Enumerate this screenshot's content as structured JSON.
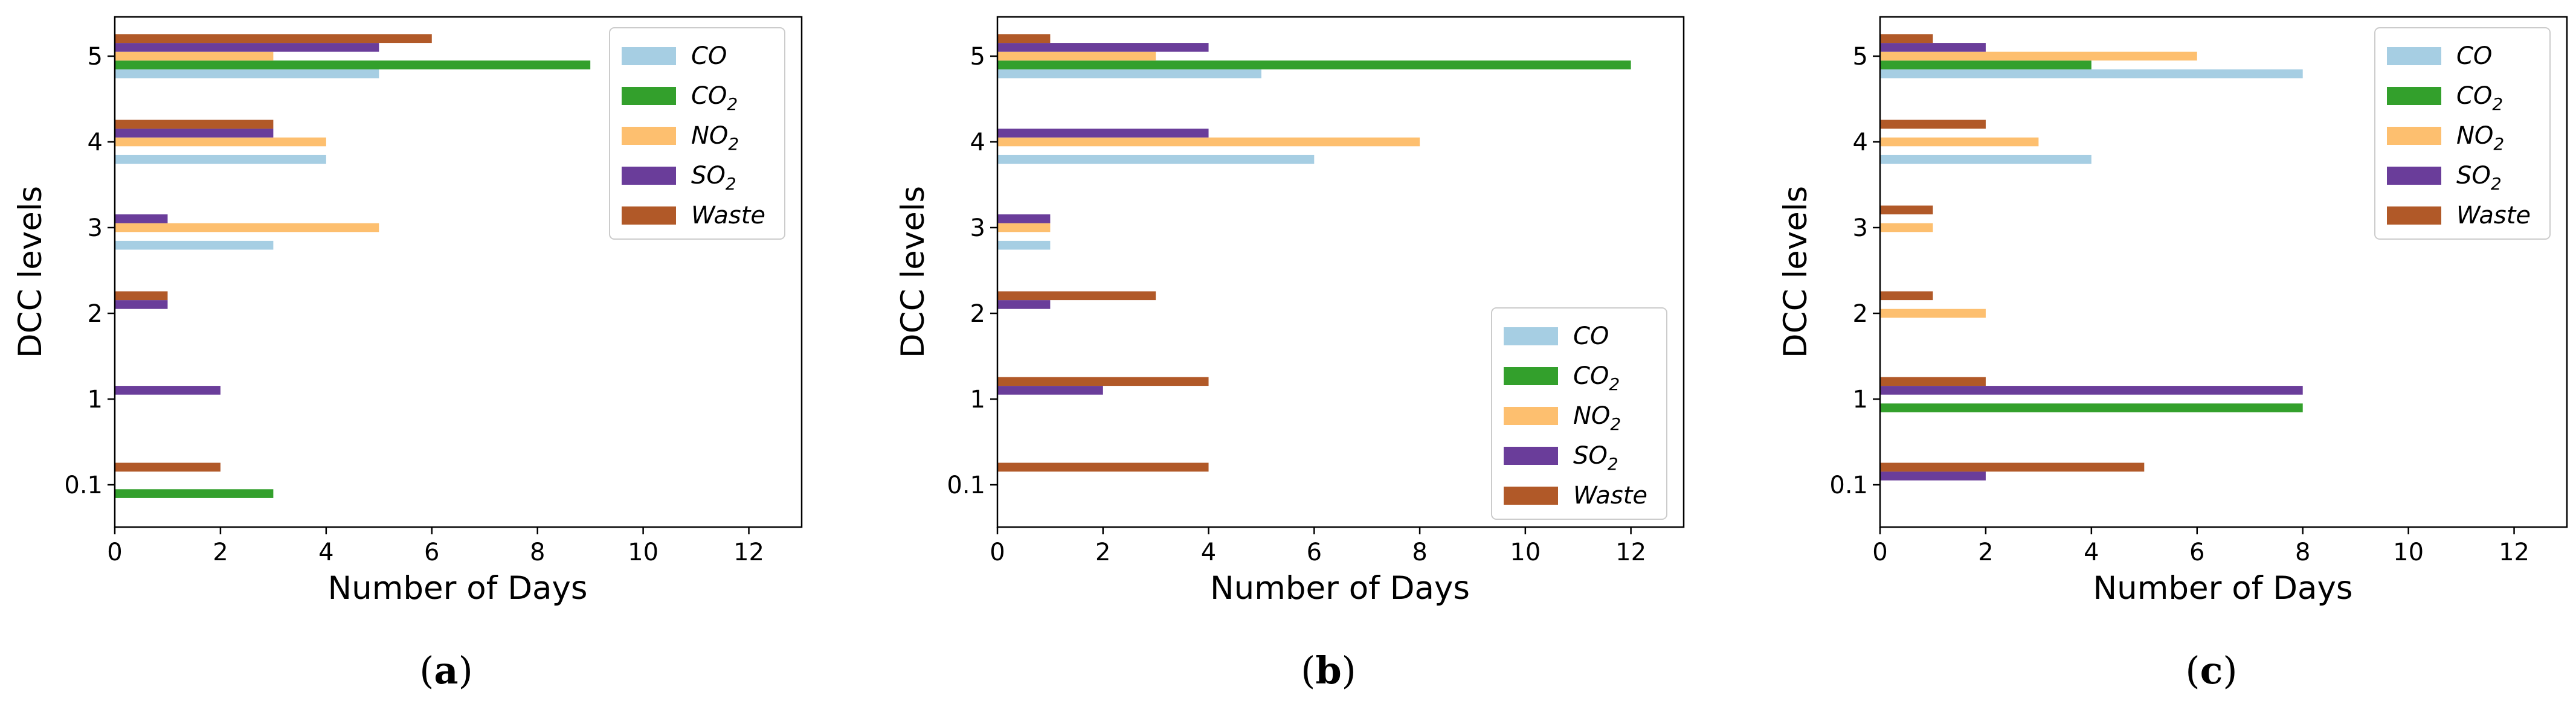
{
  "chart_data": [
    {
      "type": "bar",
      "orientation": "horizontal",
      "caption_letter": "a",
      "xlabel": "Number of Days",
      "ylabel": "DCC levels",
      "categories": [
        "0.1",
        "1",
        "2",
        "3",
        "4",
        "5"
      ],
      "xlim": [
        0,
        13
      ],
      "xticks": [
        "0",
        "2",
        "4",
        "6",
        "8",
        "10",
        "12"
      ],
      "legend_position": "top-right",
      "series": [
        {
          "name": "CO",
          "color": "#a6cee3",
          "values": [
            0,
            0,
            0,
            3,
            4,
            5
          ]
        },
        {
          "name": "CO2",
          "color": "#33a02c",
          "values": [
            3,
            0,
            0,
            0,
            0,
            9
          ]
        },
        {
          "name": "NO2",
          "color": "#fdbf6f",
          "values": [
            0,
            0,
            0,
            5,
            4,
            3
          ]
        },
        {
          "name": "SO2",
          "color": "#6a3d9a",
          "values": [
            0,
            2,
            1,
            1,
            3,
            5
          ]
        },
        {
          "name": "Waste",
          "color": "#b15928",
          "values": [
            2,
            0,
            1,
            0,
            3,
            6
          ]
        }
      ]
    },
    {
      "type": "bar",
      "orientation": "horizontal",
      "caption_letter": "b",
      "xlabel": "Number of Days",
      "ylabel": "DCC levels",
      "categories": [
        "0.1",
        "1",
        "2",
        "3",
        "4",
        "5"
      ],
      "xlim": [
        0,
        13
      ],
      "xticks": [
        "0",
        "2",
        "4",
        "6",
        "8",
        "10",
        "12"
      ],
      "legend_position": "bottom-right",
      "series": [
        {
          "name": "CO",
          "color": "#a6cee3",
          "values": [
            0,
            0,
            0,
            1,
            6,
            5
          ]
        },
        {
          "name": "CO2",
          "color": "#33a02c",
          "values": [
            0,
            0,
            0,
            0,
            0,
            12
          ]
        },
        {
          "name": "NO2",
          "color": "#fdbf6f",
          "values": [
            0,
            0,
            0,
            1,
            8,
            3
          ]
        },
        {
          "name": "SO2",
          "color": "#6a3d9a",
          "values": [
            0,
            2,
            1,
            1,
            4,
            4
          ]
        },
        {
          "name": "Waste",
          "color": "#b15928",
          "values": [
            4,
            4,
            3,
            0,
            0,
            1
          ]
        }
      ]
    },
    {
      "type": "bar",
      "orientation": "horizontal",
      "caption_letter": "c",
      "xlabel": "Number of Days",
      "ylabel": "DCC levels",
      "categories": [
        "0.1",
        "1",
        "2",
        "3",
        "4",
        "5"
      ],
      "xlim": [
        0,
        13
      ],
      "xticks": [
        "0",
        "2",
        "4",
        "6",
        "8",
        "10",
        "12"
      ],
      "legend_position": "top-right",
      "series": [
        {
          "name": "CO",
          "color": "#a6cee3",
          "values": [
            0,
            0,
            0,
            0,
            4,
            8
          ]
        },
        {
          "name": "CO2",
          "color": "#33a02c",
          "values": [
            0,
            8,
            0,
            0,
            0,
            4
          ]
        },
        {
          "name": "NO2",
          "color": "#fdbf6f",
          "values": [
            0,
            0,
            2,
            1,
            3,
            6
          ]
        },
        {
          "name": "SO2",
          "color": "#6a3d9a",
          "values": [
            2,
            8,
            0,
            0,
            0,
            2
          ]
        },
        {
          "name": "Waste",
          "color": "#b15928",
          "values": [
            5,
            2,
            1,
            1,
            2,
            1
          ]
        }
      ]
    }
  ]
}
